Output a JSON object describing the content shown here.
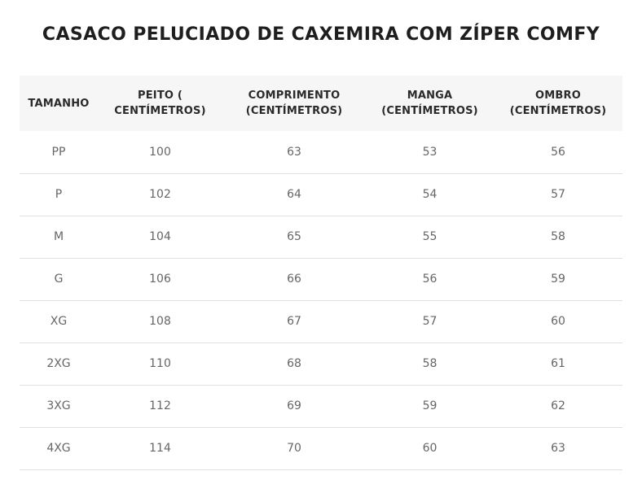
{
  "title": "CASACO PELUCIADO DE CAXEMIRA COM ZÍPER COMFY",
  "table": {
    "headers": [
      "TAMANHO",
      "PEITO ( CENTÍMETROS)",
      "COMPRIMENTO (CENTÍMETROS)",
      "MANGA (CENTÍMETROS)",
      "OMBRO (CENTÍMETROS)"
    ],
    "rows": [
      [
        "PP",
        "100",
        "63",
        "53",
        "56"
      ],
      [
        "P",
        "102",
        "64",
        "54",
        "57"
      ],
      [
        "M",
        "104",
        "65",
        "55",
        "58"
      ],
      [
        "G",
        "106",
        "66",
        "56",
        "59"
      ],
      [
        "XG",
        "108",
        "67",
        "57",
        "60"
      ],
      [
        "2XG",
        "110",
        "68",
        "58",
        "61"
      ],
      [
        "3XG",
        "112",
        "69",
        "59",
        "62"
      ],
      [
        "4XG",
        "114",
        "70",
        "60",
        "63"
      ]
    ]
  }
}
